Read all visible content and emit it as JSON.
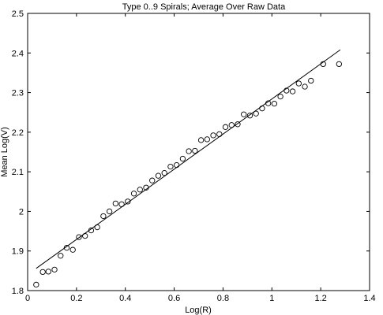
{
  "chart_data": {
    "type": "scatter",
    "title": "Type 0..9 Spirals; Average Over Raw Data",
    "xlabel": "Log(R)",
    "ylabel": "Mean Log(V)",
    "xlim": [
      0,
      1.4
    ],
    "ylim": [
      1.8,
      2.5
    ],
    "xticks": [
      0,
      0.2,
      0.4,
      0.6,
      0.8,
      1,
      1.2,
      1.4
    ],
    "yticks": [
      1.8,
      1.9,
      2,
      2.1,
      2.2,
      2.3,
      2.4,
      2.5
    ],
    "xtick_labels": [
      "0",
      "0.2",
      "0.4",
      "0.6",
      "0.8",
      "1",
      "1.2",
      "1.4"
    ],
    "ytick_labels": [
      "1.8",
      "1.9",
      "2",
      "2.1",
      "2.2",
      "2.3",
      "2.4",
      "2.5"
    ],
    "grid": false,
    "legend": "none",
    "colors": {
      "axes": "#000000",
      "marker": "#000000",
      "background": "#ffffff"
    },
    "series": [
      {
        "type": "scatter",
        "marker": "circle-open",
        "x": [
          0.035,
          0.062,
          0.085,
          0.11,
          0.135,
          0.16,
          0.185,
          0.21,
          0.235,
          0.26,
          0.285,
          0.31,
          0.335,
          0.36,
          0.385,
          0.41,
          0.435,
          0.46,
          0.485,
          0.51,
          0.535,
          0.56,
          0.585,
          0.61,
          0.635,
          0.66,
          0.685,
          0.71,
          0.735,
          0.76,
          0.785,
          0.81,
          0.835,
          0.86,
          0.885,
          0.91,
          0.935,
          0.96,
          0.985,
          1.01,
          1.035,
          1.06,
          1.085,
          1.11,
          1.135,
          1.16,
          1.21,
          1.275
        ],
        "y": [
          1.815,
          1.847,
          1.848,
          1.853,
          1.888,
          1.908,
          1.903,
          1.935,
          1.938,
          1.952,
          1.96,
          1.988,
          2.0,
          2.02,
          2.018,
          2.025,
          2.045,
          2.055,
          2.06,
          2.078,
          2.09,
          2.097,
          2.113,
          2.117,
          2.133,
          2.152,
          2.153,
          2.18,
          2.182,
          2.192,
          2.195,
          2.213,
          2.218,
          2.22,
          2.245,
          2.242,
          2.247,
          2.26,
          2.273,
          2.272,
          2.29,
          2.305,
          2.303,
          2.323,
          2.315,
          2.33,
          2.372,
          2.372
        ]
      },
      {
        "type": "line",
        "x": [
          0.035,
          1.28
        ],
        "y": [
          1.856,
          2.408
        ]
      }
    ]
  }
}
